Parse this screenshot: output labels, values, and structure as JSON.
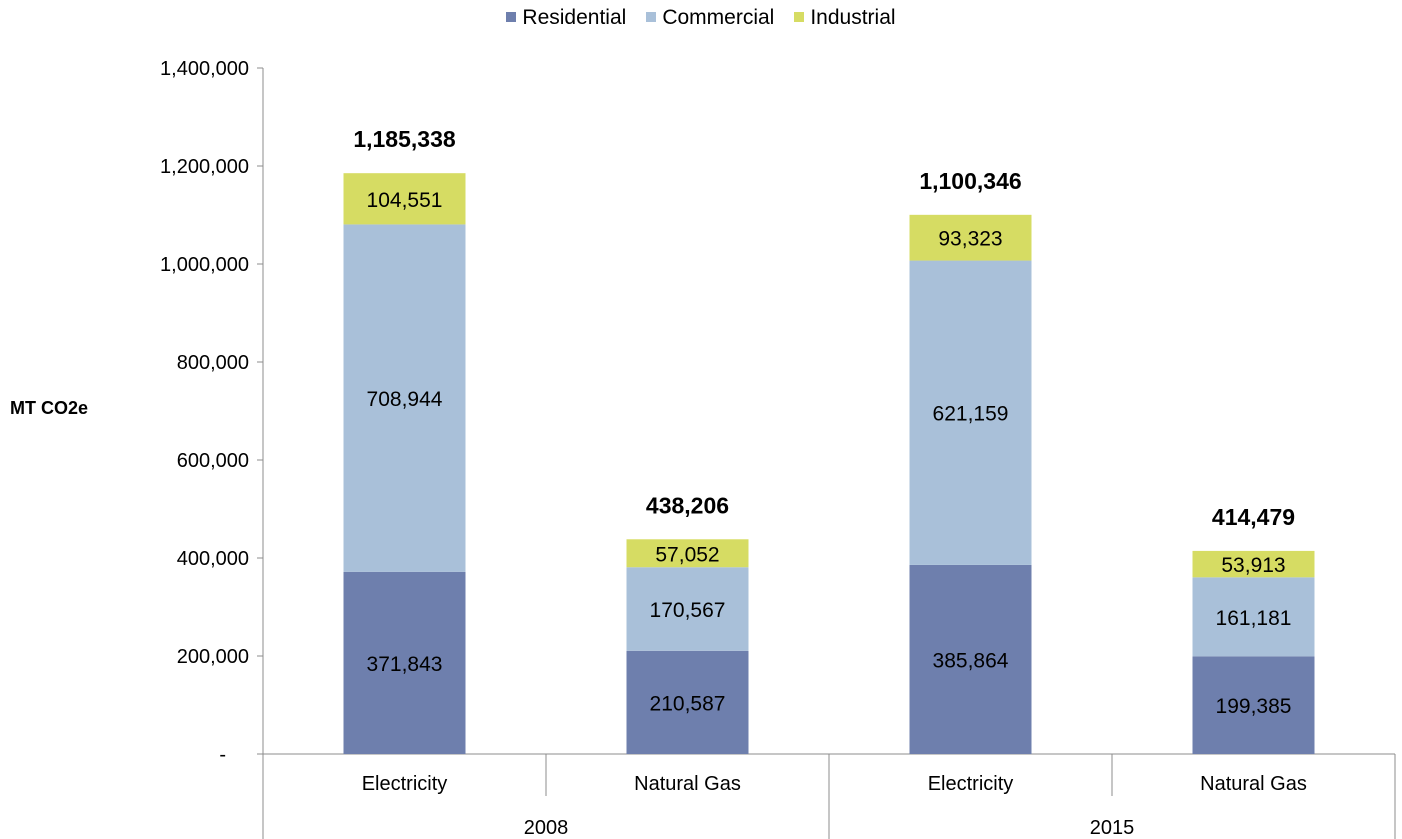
{
  "chart_data": {
    "type": "bar",
    "stacked": true,
    "ylabel": "MT CO2e",
    "ylim": [
      0,
      1400000
    ],
    "yticks": [
      {
        "value": 0,
        "label": "-"
      },
      {
        "value": 200000,
        "label": "200,000"
      },
      {
        "value": 400000,
        "label": "400,000"
      },
      {
        "value": 600000,
        "label": "600,000"
      },
      {
        "value": 800000,
        "label": "800,000"
      },
      {
        "value": 1000000,
        "label": "1,000,000"
      },
      {
        "value": 1200000,
        "label": "1,200,000"
      },
      {
        "value": 1400000,
        "label": "1,400,000"
      }
    ],
    "groups": [
      {
        "label": "2008",
        "categories": [
          "Electricity",
          "Natural Gas"
        ]
      },
      {
        "label": "2015",
        "categories": [
          "Electricity",
          "Natural Gas"
        ]
      }
    ],
    "categories": [
      "Electricity",
      "Natural Gas",
      "Electricity",
      "Natural Gas"
    ],
    "series": [
      {
        "name": "Residential",
        "color": "#6e7fad",
        "values": [
          371843,
          210587,
          385864,
          199385
        ],
        "labels": [
          "371,843",
          "210,587",
          "385,864",
          "199,385"
        ]
      },
      {
        "name": "Commercial",
        "color": "#a9c0d9",
        "values": [
          708944,
          170567,
          621159,
          161181
        ],
        "labels": [
          "708,944",
          "170,567",
          "621,159",
          "161,181"
        ]
      },
      {
        "name": "Industrial",
        "color": "#d6dc63",
        "values": [
          104551,
          57052,
          93323,
          53913
        ],
        "labels": [
          "104,551",
          "57,052",
          "93,323",
          "53,913"
        ]
      }
    ],
    "totals": [
      1185338,
      438206,
      1100346,
      414479
    ],
    "total_labels": [
      "1,185,338",
      "438,206",
      "1,100,346",
      "414,479"
    ],
    "legend_position": "top-center",
    "grid": false
  }
}
